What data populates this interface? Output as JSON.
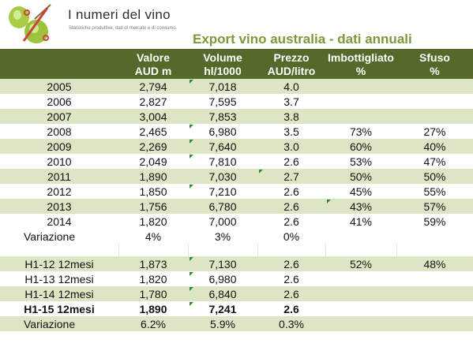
{
  "brand": {
    "name": "I numeri del vino",
    "tagline": "Statistiche produttive, dati di mercato e di consumo."
  },
  "title": "Export vino australia - dati annuali",
  "header": {
    "row1": [
      "",
      "Valore",
      "Volume",
      "Prezzo",
      "Imbottigliato",
      "Sfuso"
    ],
    "row2": [
      "",
      "AUD m",
      "hl/1000",
      "AUD/litro",
      "%",
      "%"
    ]
  },
  "annual_rows": [
    {
      "label": "2005",
      "valore": "2,794",
      "volume": "7,018",
      "prezzo": "4.0",
      "imbottigliato": "",
      "sfuso": "",
      "flags": [
        "volume"
      ]
    },
    {
      "label": "2006",
      "valore": "2,827",
      "volume": "7,595",
      "prezzo": "3.7",
      "imbottigliato": "",
      "sfuso": "",
      "flags": []
    },
    {
      "label": "2007",
      "valore": "3,004",
      "volume": "7,853",
      "prezzo": "3.8",
      "imbottigliato": "",
      "sfuso": "",
      "flags": []
    },
    {
      "label": "2008",
      "valore": "2,465",
      "volume": "6,980",
      "prezzo": "3.5",
      "imbottigliato": "73%",
      "sfuso": "27%",
      "flags": [
        "volume"
      ]
    },
    {
      "label": "2009",
      "valore": "2,269",
      "volume": "7,640",
      "prezzo": "3.0",
      "imbottigliato": "60%",
      "sfuso": "40%",
      "flags": [
        "volume"
      ]
    },
    {
      "label": "2010",
      "valore": "2,049",
      "volume": "7,810",
      "prezzo": "2.6",
      "imbottigliato": "53%",
      "sfuso": "47%",
      "flags": [
        "volume"
      ]
    },
    {
      "label": "2011",
      "valore": "1,890",
      "volume": "7,030",
      "prezzo": "2.7",
      "imbottigliato": "50%",
      "sfuso": "50%",
      "flags": [
        "prezzo"
      ]
    },
    {
      "label": "2012",
      "valore": "1,850",
      "volume": "7,210",
      "prezzo": "2.6",
      "imbottigliato": "45%",
      "sfuso": "55%",
      "flags": [
        "volume"
      ]
    },
    {
      "label": "2013",
      "valore": "1,756",
      "volume": "6,780",
      "prezzo": "2.6",
      "imbottigliato": "43%",
      "sfuso": "57%",
      "flags": [
        "imbottigliato"
      ]
    },
    {
      "label": "2014",
      "valore": "1,820",
      "volume": "7,000",
      "prezzo": "2.6",
      "imbottigliato": "41%",
      "sfuso": "59%",
      "flags": []
    }
  ],
  "annual_variation": {
    "label": "Variazione",
    "valore": "4%",
    "volume": "3%",
    "prezzo": "0%",
    "imbottigliato": "",
    "sfuso": ""
  },
  "h1_rows": [
    {
      "label": "H1-12 12mesi",
      "valore": "1,873",
      "volume": "7,130",
      "prezzo": "2.6",
      "imbottigliato": "52%",
      "sfuso": "48%",
      "flags": [
        "volume"
      ]
    },
    {
      "label": "H1-13 12mesi",
      "valore": "1,820",
      "volume": "6,980",
      "prezzo": "2.6",
      "imbottigliato": "",
      "sfuso": "",
      "flags": [
        "volume"
      ]
    },
    {
      "label": "H1-14 12mesi",
      "valore": "1,780",
      "volume": "6,840",
      "prezzo": "2.6",
      "imbottigliato": "",
      "sfuso": "",
      "flags": [
        "volume"
      ]
    },
    {
      "label": "H1-15 12mesi",
      "valore": "1,890",
      "volume": "7,241",
      "prezzo": "2.6",
      "imbottigliato": "",
      "sfuso": "",
      "flags": [
        "volume"
      ],
      "bold": true
    }
  ],
  "h1_variation": {
    "label": "Variazione",
    "valore": "6.2%",
    "volume": "5.9%",
    "prezzo": "0.3%",
    "imbottigliato": "",
    "sfuso": ""
  },
  "colors": {
    "header_bg": "#55692a",
    "row_alt_bg": "#dde6c4",
    "title_green": "#7a9a3a",
    "grape_green": "#9dc23b",
    "percent_red": "#c8453c",
    "error_flag": "#2e8b2e"
  }
}
